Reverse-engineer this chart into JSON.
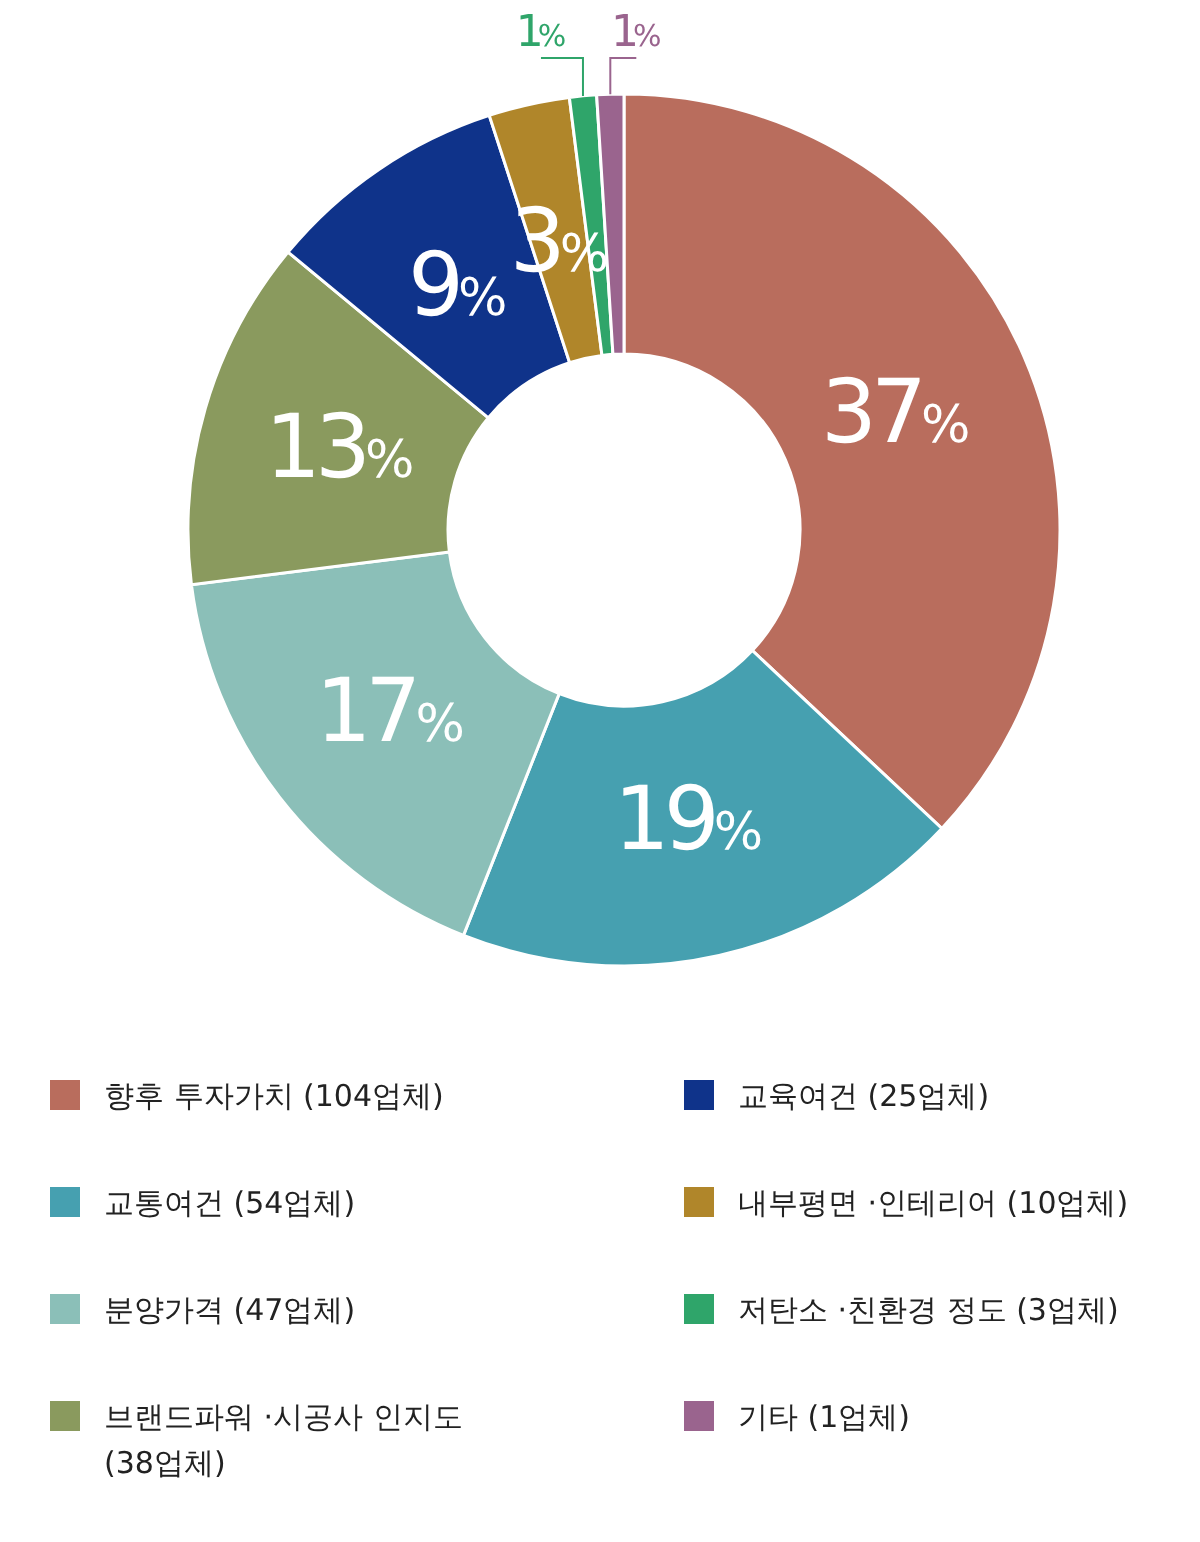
{
  "chart_data": {
    "type": "donut",
    "categories": [
      "향후 투자가치 (104업체)",
      "교통여건 (54업체)",
      "분양가격 (47업체)",
      "브랜드파워 ·시공사 인지도 (38업체)",
      "교육여건 (25업체)",
      "내부평면 ·인테리어 (10업체)",
      "저탄소 ·친환경 정도 (3업체)",
      "기타 (1업체)"
    ],
    "values": [
      37,
      19,
      17,
      13,
      9,
      3,
      1,
      1
    ],
    "colors": [
      "#b96d5d",
      "#46a0b0",
      "#8bbfb8",
      "#8a9a5e",
      "#0f338a",
      "#b0862a",
      "#2fa56a",
      "#9a648e"
    ],
    "value_labels": [
      "37%",
      "19%",
      "17%",
      "13%",
      "9%",
      "3%",
      "1%",
      "1%"
    ],
    "legend": "bottom"
  }
}
